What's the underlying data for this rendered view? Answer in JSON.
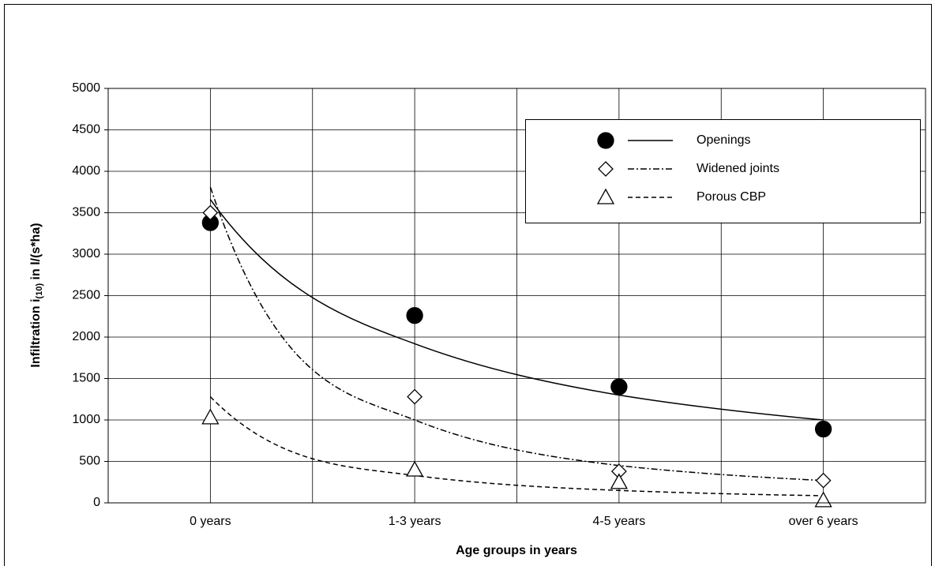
{
  "chart_data": {
    "type": "scatter",
    "x_label": "Age groups in years",
    "y_label": {
      "main": "Infiltration i",
      "subscript": "(10)",
      "rest": " in l/(s*ha)"
    },
    "categories": [
      "0 years",
      "1-3 years",
      "4-5 years",
      "over 6 years"
    ],
    "ylim": [
      0,
      5000
    ],
    "yticks": [
      0,
      500,
      1000,
      1500,
      2000,
      2500,
      3000,
      3500,
      4000,
      4500,
      5000
    ],
    "grid": true,
    "legend": "upper right",
    "series": [
      {
        "name": "Openings",
        "marker": "circle",
        "color": "#000000",
        "fill": "#000000",
        "values": [
          3380,
          2260,
          1400,
          890
        ],
        "trend": {
          "dash": "none",
          "values": [
            3660,
            1920,
            1300,
            1000
          ]
        }
      },
      {
        "name": "Widened joints",
        "marker": "diamond",
        "color": "#000000",
        "fill": "#ffffff",
        "values": [
          3500,
          1280,
          380,
          270
        ],
        "trend": {
          "dash": "8 3 2 3",
          "values": [
            3810,
            1000,
            450,
            270
          ]
        }
      },
      {
        "name": "Porous CBP",
        "marker": "triangle",
        "color": "#000000",
        "fill": "#ffffff",
        "values": [
          1030,
          400,
          250,
          30
        ],
        "trend": {
          "dash": "6 4",
          "values": [
            1280,
            330,
            150,
            86
          ]
        }
      }
    ]
  }
}
